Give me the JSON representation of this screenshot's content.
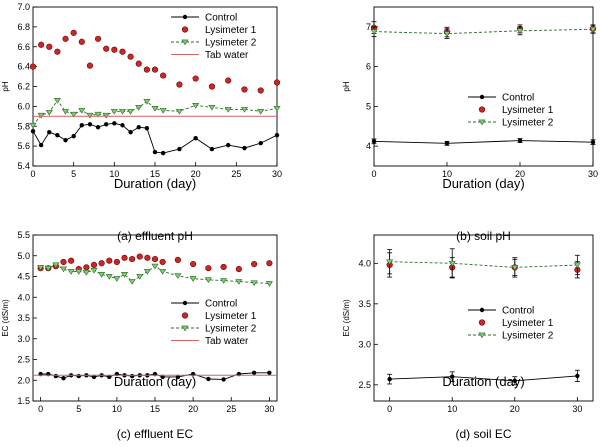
{
  "chart_data": [
    {
      "id": "effluent-ph",
      "type": "line",
      "caption": "(a)  effluent  pH",
      "xlabel": "Duration (day)",
      "ylabel": "pH",
      "xlim": [
        0,
        30
      ],
      "ylim": [
        5.4,
        7.0
      ],
      "xticks": [
        0,
        5,
        10,
        15,
        20,
        25,
        30
      ],
      "yticks": [
        5.4,
        5.6,
        5.8,
        6.0,
        6.2,
        6.4,
        6.6,
        6.8,
        7.0
      ],
      "ytick_labels": [
        "5.4",
        "5.6",
        "5.8",
        "6.0",
        "6.2",
        "6.4",
        "6.6",
        "6.8",
        "7.0"
      ],
      "legend": [
        "Control",
        "Lysimeter 1",
        "Lysimeter 2",
        "Tab water"
      ],
      "series": [
        {
          "name": "Control",
          "style": "control",
          "x": [
            0,
            1,
            2,
            3,
            4,
            5,
            6,
            7,
            8,
            9,
            10,
            11,
            12,
            13,
            14,
            15,
            16,
            18,
            20,
            22,
            24,
            26,
            28,
            30
          ],
          "values": [
            5.75,
            5.61,
            5.74,
            5.71,
            5.66,
            5.7,
            5.81,
            5.82,
            5.79,
            5.82,
            5.83,
            5.81,
            5.74,
            5.79,
            5.78,
            5.54,
            5.53,
            5.57,
            5.68,
            5.57,
            5.61,
            5.58,
            5.63,
            5.71
          ]
        },
        {
          "name": "Lysimeter 1",
          "style": "lys1",
          "x": [
            0,
            1,
            2,
            3,
            4,
            5,
            6,
            7,
            8,
            9,
            10,
            11,
            12,
            13,
            14,
            15,
            16,
            18,
            20,
            22,
            24,
            26,
            28,
            30
          ],
          "values": [
            6.4,
            6.62,
            6.6,
            6.55,
            6.68,
            6.74,
            6.65,
            6.41,
            6.68,
            6.58,
            6.57,
            6.55,
            6.5,
            6.43,
            6.37,
            6.37,
            6.31,
            6.22,
            6.28,
            6.2,
            6.26,
            6.17,
            6.16,
            6.24
          ]
        },
        {
          "name": "Lysimeter 2",
          "style": "lys2",
          "x": [
            0,
            1,
            2,
            3,
            4,
            5,
            6,
            7,
            8,
            9,
            10,
            11,
            12,
            13,
            14,
            15,
            16,
            18,
            20,
            22,
            24,
            26,
            28,
            30
          ],
          "values": [
            5.81,
            5.91,
            5.94,
            6.06,
            5.95,
            5.92,
            5.96,
            5.91,
            5.92,
            5.91,
            5.95,
            5.95,
            5.95,
            5.99,
            6.05,
            5.98,
            5.96,
            5.95,
            6.01,
            5.99,
            5.97,
            5.97,
            5.95,
            5.98
          ]
        },
        {
          "name": "Tab water",
          "style": "ref",
          "x": [
            0,
            30
          ],
          "values": [
            5.9,
            5.9
          ]
        }
      ]
    },
    {
      "id": "soil-ph",
      "type": "line",
      "caption": "(b)  soil  pH",
      "xlabel": "Duration (day)",
      "ylabel": "pH",
      "xlim": [
        0,
        30
      ],
      "ylim": [
        3.5,
        7.5
      ],
      "xticks": [
        0,
        10,
        20,
        30
      ],
      "yticks": [
        4,
        5,
        6,
        7
      ],
      "ytick_labels": [
        "4",
        "5",
        "6",
        "7"
      ],
      "legend": [
        "Control",
        "Lysimeter 1",
        "Lysimeter 2"
      ],
      "series": [
        {
          "name": "Control",
          "style": "control",
          "x": [
            0,
            10,
            20,
            30
          ],
          "values": [
            4.12,
            4.07,
            4.14,
            4.1
          ],
          "errors": [
            0.06,
            0.05,
            0.05,
            0.06
          ]
        },
        {
          "name": "Lysimeter 1",
          "style": "lys1",
          "x": [
            0,
            10,
            20,
            30
          ],
          "values": [
            6.98,
            6.87,
            6.95,
            6.95
          ],
          "errors": [
            0.15,
            0.12,
            0.1,
            0.1
          ]
        },
        {
          "name": "Lysimeter 2",
          "style": "lys2",
          "x": [
            0,
            10,
            20,
            30
          ],
          "values": [
            6.88,
            6.83,
            6.9,
            6.94
          ],
          "errors": [
            0.12,
            0.12,
            0.1,
            0.1
          ]
        }
      ]
    },
    {
      "id": "effluent-ec",
      "type": "line",
      "caption": "(c)  effluent  EC",
      "xlabel": "Duration (day)",
      "ylabel": "EC (dS/m)",
      "xlim": [
        -1,
        31
      ],
      "ylim": [
        1.5,
        5.5
      ],
      "xticks": [
        0,
        5,
        10,
        15,
        20,
        25,
        30
      ],
      "yticks": [
        1.5,
        2.0,
        2.5,
        3.0,
        3.5,
        4.0,
        4.5,
        5.0,
        5.5
      ],
      "ytick_labels": [
        "1.5",
        "2.0",
        "2.5",
        "3.0",
        "3.5",
        "4.0",
        "4.5",
        "5.0",
        "5.5"
      ],
      "legend": [
        "Control",
        "Lysimeter 1",
        "Lysimeter 2",
        "Tab water"
      ],
      "series": [
        {
          "name": "Control",
          "style": "control",
          "x": [
            0,
            1,
            2,
            3,
            4,
            5,
            6,
            7,
            8,
            9,
            10,
            11,
            12,
            13,
            14,
            15,
            16,
            18,
            20,
            22,
            24,
            26,
            28,
            30
          ],
          "values": [
            2.15,
            2.15,
            2.1,
            2.05,
            2.12,
            2.1,
            2.12,
            2.08,
            2.12,
            2.08,
            2.15,
            2.12,
            2.1,
            2.12,
            2.12,
            2.15,
            2.08,
            2.08,
            2.15,
            2.03,
            2.02,
            2.15,
            2.18,
            2.18
          ]
        },
        {
          "name": "Lysimeter 1",
          "style": "lys1",
          "x": [
            0,
            1,
            2,
            3,
            4,
            5,
            6,
            7,
            8,
            9,
            10,
            11,
            12,
            13,
            14,
            15,
            16,
            18,
            20,
            22,
            24,
            26,
            28,
            30
          ],
          "values": [
            4.7,
            4.7,
            4.75,
            4.85,
            4.88,
            4.68,
            4.72,
            4.78,
            4.82,
            4.88,
            4.85,
            4.95,
            4.92,
            4.98,
            4.95,
            4.92,
            4.85,
            4.9,
            4.8,
            4.7,
            4.73,
            4.68,
            4.8,
            4.82
          ]
        },
        {
          "name": "Lysimeter 2",
          "style": "lys2",
          "x": [
            0,
            1,
            2,
            3,
            4,
            5,
            6,
            7,
            8,
            9,
            10,
            11,
            12,
            13,
            14,
            15,
            16,
            18,
            20,
            22,
            24,
            26,
            28,
            30
          ],
          "values": [
            4.72,
            4.7,
            4.78,
            4.68,
            4.62,
            4.62,
            4.6,
            4.65,
            4.55,
            4.5,
            4.45,
            4.55,
            4.38,
            4.5,
            4.62,
            4.75,
            4.62,
            4.52,
            4.45,
            4.42,
            4.4,
            4.38,
            4.35,
            4.33
          ]
        },
        {
          "name": "Tab water",
          "style": "ref",
          "x": [
            -1,
            31
          ],
          "values": [
            2.12,
            2.12
          ]
        }
      ]
    },
    {
      "id": "soil-ec",
      "type": "line",
      "caption": "(d)  soil  EC",
      "xlabel": "Duration (day)",
      "ylabel": "EC (dS/m)",
      "xlim": [
        -2.5,
        32.5
      ],
      "ylim": [
        2.3,
        4.35
      ],
      "xticks": [
        0,
        10,
        20,
        30
      ],
      "yticks": [
        2.5,
        3.0,
        3.5,
        4.0
      ],
      "ytick_labels": [
        "2.5",
        "3.0",
        "3.5",
        "4.0"
      ],
      "legend": [
        "Control",
        "Lysimeter 1",
        "Lysimeter 2"
      ],
      "series": [
        {
          "name": "Control",
          "style": "control",
          "x": [
            0,
            10,
            20,
            30
          ],
          "values": [
            2.57,
            2.6,
            2.55,
            2.61
          ],
          "errors": [
            0.06,
            0.06,
            0.05,
            0.07
          ]
        },
        {
          "name": "Lysimeter 1",
          "style": "lys1",
          "x": [
            0,
            10,
            20,
            30
          ],
          "values": [
            3.98,
            3.95,
            3.95,
            3.92
          ],
          "errors": [
            0.15,
            0.12,
            0.1,
            0.1
          ]
        },
        {
          "name": "Lysimeter 2",
          "style": "lys2",
          "x": [
            0,
            10,
            20,
            30
          ],
          "values": [
            4.02,
            4.0,
            3.95,
            3.98
          ],
          "errors": [
            0.15,
            0.18,
            0.12,
            0.12
          ]
        }
      ]
    }
  ],
  "colors": {
    "control": "#000000",
    "lys1_fill": "#c62828",
    "lys1_stroke": "#7a0000",
    "lys2_fill": "#7ecf6c",
    "lys2_stroke": "#2e6b2e",
    "tab_water": "#d46464",
    "axis": "#000000"
  }
}
